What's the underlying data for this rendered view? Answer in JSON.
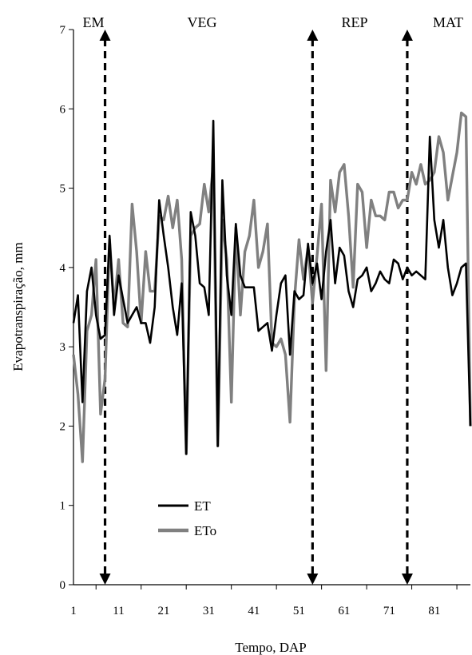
{
  "chart_data": {
    "type": "line",
    "xlabel": "Tempo, DAP",
    "ylabel": "Evapotranspiração, mm",
    "xlim": [
      1,
      89
    ],
    "ylim": [
      0,
      7
    ],
    "x_ticks": [
      1,
      11,
      21,
      31,
      41,
      51,
      61,
      71,
      81
    ],
    "y_ticks": [
      0,
      1,
      2,
      3,
      4,
      5,
      6,
      7
    ],
    "grid": false,
    "legend_position": "bottom-left",
    "stages": [
      {
        "label": "EM",
        "x": 1
      },
      {
        "label": "VEG",
        "x": 21
      },
      {
        "label": "REP",
        "x": 57
      },
      {
        "label": "MAT",
        "x": 80
      }
    ],
    "stage_boundaries": [
      8,
      54,
      75
    ],
    "series": [
      {
        "name": "ET",
        "color": "#000000",
        "x": [
          1,
          2,
          3,
          4,
          5,
          6,
          7,
          8,
          9,
          10,
          11,
          12,
          13,
          14,
          15,
          16,
          17,
          18,
          19,
          20,
          21,
          22,
          23,
          24,
          25,
          26,
          27,
          28,
          29,
          30,
          31,
          32,
          33,
          34,
          35,
          36,
          37,
          38,
          39,
          40,
          41,
          42,
          43,
          44,
          45,
          46,
          47,
          48,
          49,
          50,
          51,
          52,
          53,
          54,
          55,
          56,
          57,
          58,
          59,
          60,
          61,
          62,
          63,
          64,
          65,
          66,
          67,
          68,
          69,
          70,
          71,
          72,
          73,
          74,
          75,
          76,
          77,
          78,
          79,
          80,
          81,
          82,
          83,
          84,
          85,
          86,
          87,
          88,
          89
        ],
        "values": [
          3.3,
          3.65,
          2.3,
          3.7,
          4.0,
          3.4,
          3.1,
          3.15,
          4.4,
          3.4,
          3.9,
          3.6,
          3.3,
          3.4,
          3.5,
          3.3,
          3.3,
          3.05,
          3.5,
          4.85,
          4.4,
          4.0,
          3.5,
          3.15,
          3.8,
          1.65,
          4.7,
          4.4,
          3.8,
          3.75,
          3.4,
          5.85,
          1.75,
          5.1,
          3.9,
          3.4,
          4.55,
          3.9,
          3.75,
          3.75,
          3.75,
          3.2,
          3.25,
          3.3,
          2.95,
          3.4,
          3.8,
          3.9,
          2.9,
          3.7,
          3.6,
          3.65,
          4.3,
          3.8,
          4.05,
          3.6,
          4.2,
          4.6,
          3.8,
          4.25,
          4.15,
          3.7,
          3.5,
          3.85,
          3.9,
          4.0,
          3.7,
          3.8,
          3.95,
          3.85,
          3.8,
          4.1,
          4.05,
          3.85,
          4.0,
          3.9,
          3.95,
          3.9,
          3.85,
          5.65,
          4.6,
          4.25,
          4.6,
          4.0,
          3.65,
          3.8,
          4.0,
          4.05,
          2.0
        ]
      },
      {
        "name": "ETo",
        "color": "#808080",
        "x": [
          1,
          2,
          3,
          4,
          5,
          6,
          7,
          8,
          9,
          10,
          11,
          12,
          13,
          14,
          15,
          16,
          17,
          18,
          19,
          20,
          21,
          22,
          23,
          24,
          25,
          26,
          27,
          28,
          29,
          30,
          31,
          32,
          33,
          34,
          35,
          36,
          37,
          38,
          39,
          40,
          41,
          42,
          43,
          44,
          45,
          46,
          47,
          48,
          49,
          50,
          51,
          52,
          53,
          54,
          55,
          56,
          57,
          58,
          59,
          60,
          61,
          62,
          63,
          64,
          65,
          66,
          67,
          68,
          69,
          70,
          71,
          72,
          73,
          74,
          75,
          76,
          77,
          78,
          79,
          80,
          81,
          82,
          83,
          84,
          85,
          86,
          87,
          88,
          89
        ],
        "values": [
          2.9,
          2.4,
          1.55,
          3.2,
          3.4,
          4.1,
          2.15,
          2.6,
          4.35,
          3.5,
          4.1,
          3.3,
          3.25,
          4.8,
          4.2,
          3.3,
          4.2,
          3.7,
          3.7,
          4.65,
          4.6,
          4.9,
          4.5,
          4.85,
          4.1,
          1.65,
          4.4,
          4.5,
          4.55,
          5.05,
          4.7,
          5.3,
          1.75,
          4.6,
          4.1,
          2.3,
          4.5,
          3.4,
          4.2,
          4.4,
          4.85,
          4.0,
          4.2,
          4.55,
          3.05,
          3.0,
          3.1,
          2.9,
          2.05,
          3.6,
          4.35,
          3.85,
          4.25,
          3.55,
          4.15,
          4.8,
          2.7,
          5.1,
          4.7,
          5.2,
          5.3,
          4.65,
          3.75,
          5.05,
          4.95,
          4.25,
          4.85,
          4.65,
          4.65,
          4.6,
          4.95,
          4.95,
          4.75,
          4.85,
          4.85,
          5.2,
          5.05,
          5.3,
          5.05,
          5.1,
          5.2,
          5.65,
          5.45,
          4.85,
          5.15,
          5.45,
          5.95,
          5.9,
          2.0
        ]
      }
    ]
  }
}
